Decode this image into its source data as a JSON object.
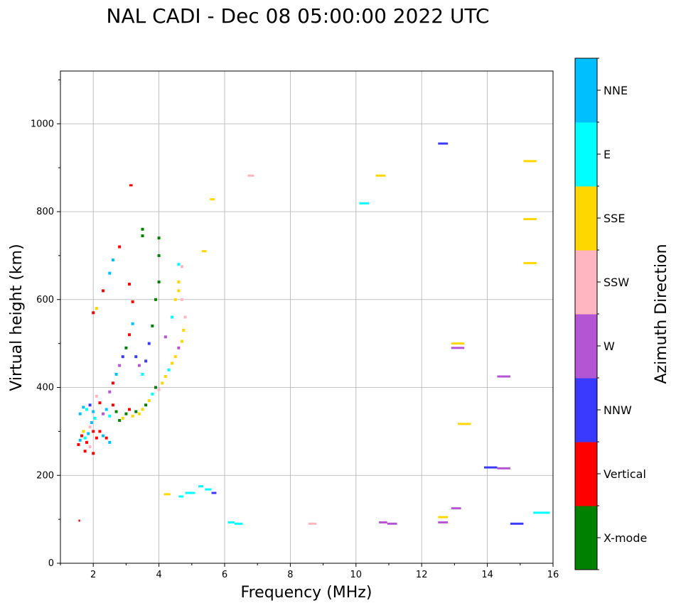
{
  "title": "NAL CADI - Dec 08 05:00:00 2022 UTC",
  "chart_data": {
    "type": "scatter",
    "title": "NAL CADI - Dec 08 05:00:00 2022 UTC",
    "xlabel": "Frequency (MHz)",
    "ylabel": "Virtual height (km)",
    "xlim": [
      1,
      16
    ],
    "ylim": [
      0,
      1120
    ],
    "xticks": [
      2,
      4,
      6,
      8,
      10,
      12,
      14,
      16
    ],
    "yticks": [
      0,
      200,
      400,
      600,
      800,
      1000
    ],
    "grid": true,
    "colorbar": {
      "label": "Azimuth Direction",
      "categories": [
        {
          "name": "X-mode",
          "color": "#008000"
        },
        {
          "name": "Vertical",
          "color": "#ff0000"
        },
        {
          "name": "NNW",
          "color": "#3a3aff"
        },
        {
          "name": "W",
          "color": "#b455d4"
        },
        {
          "name": "SSW",
          "color": "#ffb6c1"
        },
        {
          "name": "SSE",
          "color": "#ffd700"
        },
        {
          "name": "E",
          "color": "#00ffff"
        },
        {
          "name": "NNE",
          "color": "#00bfff"
        }
      ]
    },
    "segments": [
      {
        "f1": 12.5,
        "f2": 12.8,
        "h": 955,
        "dir": "NNW"
      },
      {
        "f1": 15.1,
        "f2": 15.5,
        "h": 915,
        "dir": "SSE"
      },
      {
        "f1": 10.6,
        "f2": 10.9,
        "h": 882,
        "dir": "SSE"
      },
      {
        "f1": 6.7,
        "f2": 6.9,
        "h": 882,
        "dir": "SSW"
      },
      {
        "f1": 3.1,
        "f2": 3.2,
        "h": 860,
        "dir": "Vertical"
      },
      {
        "f1": 5.55,
        "f2": 5.7,
        "h": 828,
        "dir": "SSE"
      },
      {
        "f1": 10.1,
        "f2": 10.4,
        "h": 819,
        "dir": "E"
      },
      {
        "f1": 15.1,
        "f2": 15.5,
        "h": 783,
        "dir": "SSE"
      },
      {
        "f1": 5.3,
        "f2": 5.45,
        "h": 710,
        "dir": "SSE"
      },
      {
        "f1": 15.1,
        "f2": 15.5,
        "h": 683,
        "dir": "SSE"
      },
      {
        "f1": 12.9,
        "f2": 13.3,
        "h": 500,
        "dir": "SSE"
      },
      {
        "f1": 12.9,
        "f2": 13.3,
        "h": 490,
        "dir": "W"
      },
      {
        "f1": 14.3,
        "f2": 14.7,
        "h": 425,
        "dir": "W"
      },
      {
        "f1": 13.1,
        "f2": 13.5,
        "h": 317,
        "dir": "SSE"
      },
      {
        "f1": 13.9,
        "f2": 14.3,
        "h": 218,
        "dir": "NNW"
      },
      {
        "f1": 14.3,
        "f2": 14.7,
        "h": 216,
        "dir": "W"
      },
      {
        "f1": 5.2,
        "f2": 5.35,
        "h": 175,
        "dir": "E"
      },
      {
        "f1": 5.4,
        "f2": 5.6,
        "h": 168,
        "dir": "E"
      },
      {
        "f1": 5.6,
        "f2": 5.75,
        "h": 160,
        "dir": "NNW"
      },
      {
        "f1": 4.8,
        "f2": 5.1,
        "h": 160,
        "dir": "E"
      },
      {
        "f1": 4.6,
        "f2": 4.75,
        "h": 152,
        "dir": "E"
      },
      {
        "f1": 4.15,
        "f2": 4.35,
        "h": 157,
        "dir": "SSE"
      },
      {
        "f1": 15.4,
        "f2": 15.9,
        "h": 115,
        "dir": "E"
      },
      {
        "f1": 12.5,
        "f2": 12.8,
        "h": 105,
        "dir": "SSE"
      },
      {
        "f1": 12.9,
        "f2": 13.2,
        "h": 125,
        "dir": "W"
      },
      {
        "f1": 12.5,
        "f2": 12.8,
        "h": 93,
        "dir": "W"
      },
      {
        "f1": 10.7,
        "f2": 10.95,
        "h": 93,
        "dir": "W"
      },
      {
        "f1": 10.95,
        "f2": 11.25,
        "h": 90,
        "dir": "W"
      },
      {
        "f1": 14.7,
        "f2": 15.1,
        "h": 90,
        "dir": "NNW"
      },
      {
        "f1": 6.1,
        "f2": 6.3,
        "h": 93,
        "dir": "E"
      },
      {
        "f1": 6.3,
        "f2": 6.55,
        "h": 90,
        "dir": "E"
      },
      {
        "f1": 8.55,
        "f2": 8.8,
        "h": 90,
        "dir": "SSW"
      },
      {
        "f1": 1.55,
        "f2": 1.6,
        "h": 97,
        "dir": "Vertical"
      }
    ],
    "trace": {
      "description": "Dense overlapping multi-azimuth trace from ~1.5 to ~4.8 MHz",
      "points": [
        [
          1.55,
          270,
          "Vertical"
        ],
        [
          1.6,
          280,
          "NNE"
        ],
        [
          1.65,
          290,
          "Vertical"
        ],
        [
          1.7,
          300,
          "SSE"
        ],
        [
          1.75,
          285,
          "E"
        ],
        [
          1.8,
          275,
          "Vertical"
        ],
        [
          1.85,
          295,
          "NNE"
        ],
        [
          1.9,
          310,
          "SSW"
        ],
        [
          1.95,
          320,
          "NNE"
        ],
        [
          2.0,
          300,
          "Vertical"
        ],
        [
          2.05,
          330,
          "E"
        ],
        [
          2.1,
          285,
          "Vertical"
        ],
        [
          1.6,
          340,
          "NNE"
        ],
        [
          1.7,
          355,
          "NNE"
        ],
        [
          1.8,
          350,
          "E"
        ],
        [
          1.9,
          360,
          "NNW"
        ],
        [
          2.0,
          345,
          "NNE"
        ],
        [
          2.1,
          380,
          "SSW"
        ],
        [
          2.2,
          365,
          "Vertical"
        ],
        [
          2.3,
          340,
          "W"
        ],
        [
          2.4,
          350,
          "NNE"
        ],
        [
          2.5,
          335,
          "E"
        ],
        [
          2.6,
          360,
          "Vertical"
        ],
        [
          2.7,
          345,
          "X-mode"
        ],
        [
          2.8,
          325,
          "X-mode"
        ],
        [
          2.9,
          330,
          "SSE"
        ],
        [
          3.0,
          340,
          "X-mode"
        ],
        [
          3.1,
          350,
          "Vertical"
        ],
        [
          3.2,
          335,
          "SSE"
        ],
        [
          3.3,
          345,
          "X-mode"
        ],
        [
          3.4,
          340,
          "SSE"
        ],
        [
          3.5,
          350,
          "SSE"
        ],
        [
          3.6,
          360,
          "X-mode"
        ],
        [
          3.7,
          370,
          "SSE"
        ],
        [
          3.8,
          385,
          "E"
        ],
        [
          3.9,
          400,
          "X-mode"
        ],
        [
          4.0,
          395,
          "SSW"
        ],
        [
          4.1,
          410,
          "SSE"
        ],
        [
          4.2,
          425,
          "SSE"
        ],
        [
          4.3,
          440,
          "E"
        ],
        [
          4.4,
          455,
          "SSE"
        ],
        [
          4.5,
          470,
          "SSE"
        ],
        [
          4.6,
          490,
          "W"
        ],
        [
          4.7,
          505,
          "SSE"
        ],
        [
          4.75,
          530,
          "SSE"
        ],
        [
          4.8,
          560,
          "SSW"
        ],
        [
          4.7,
          600,
          "SSW"
        ],
        [
          4.6,
          620,
          "SSE"
        ],
        [
          2.5,
          390,
          "W"
        ],
        [
          2.6,
          410,
          "Vertical"
        ],
        [
          2.7,
          430,
          "NNE"
        ],
        [
          2.8,
          450,
          "W"
        ],
        [
          2.9,
          470,
          "NNW"
        ],
        [
          3.0,
          490,
          "X-mode"
        ],
        [
          3.1,
          520,
          "Vertical"
        ],
        [
          3.2,
          545,
          "NNE"
        ],
        [
          3.3,
          470,
          "NNW"
        ],
        [
          3.4,
          450,
          "W"
        ],
        [
          3.5,
          430,
          "E"
        ],
        [
          3.6,
          460,
          "NNW"
        ],
        [
          3.7,
          500,
          "NNW"
        ],
        [
          3.8,
          540,
          "X-mode"
        ],
        [
          3.9,
          600,
          "X-mode"
        ],
        [
          4.0,
          640,
          "X-mode"
        ],
        [
          4.0,
          700,
          "X-mode"
        ],
        [
          4.0,
          740,
          "X-mode"
        ],
        [
          3.5,
          760,
          "X-mode"
        ],
        [
          3.5,
          745,
          "X-mode"
        ],
        [
          2.0,
          570,
          "Vertical"
        ],
        [
          2.1,
          580,
          "SSE"
        ],
        [
          2.3,
          620,
          "Vertical"
        ],
        [
          2.5,
          660,
          "NNE"
        ],
        [
          2.6,
          690,
          "NNE"
        ],
        [
          2.8,
          720,
          "Vertical"
        ],
        [
          3.1,
          635,
          "Vertical"
        ],
        [
          3.2,
          595,
          "Vertical"
        ],
        [
          2.2,
          300,
          "Vertical"
        ],
        [
          2.3,
          290,
          "NNE"
        ],
        [
          2.4,
          285,
          "Vertical"
        ],
        [
          2.5,
          275,
          "NNE"
        ],
        [
          1.75,
          255,
          "Vertical"
        ],
        [
          1.9,
          265,
          "SSW"
        ],
        [
          2.0,
          250,
          "Vertical"
        ],
        [
          4.2,
          515,
          "W"
        ],
        [
          4.4,
          560,
          "E"
        ],
        [
          4.5,
          600,
          "SSE"
        ],
        [
          4.6,
          640,
          "SSE"
        ],
        [
          4.6,
          680,
          "E"
        ],
        [
          4.7,
          675,
          "SSW"
        ]
      ]
    }
  }
}
